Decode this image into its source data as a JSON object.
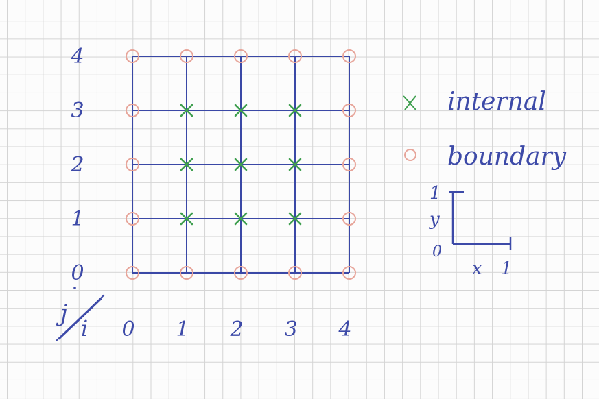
{
  "diagram": {
    "row_index_symbol": "j",
    "col_index_symbol": "i",
    "col_labels": [
      "0",
      "1",
      "2",
      "3",
      "4"
    ],
    "row_labels": [
      "0",
      "1",
      "2",
      "3",
      "4"
    ],
    "internal_points": [
      [
        1,
        1
      ],
      [
        2,
        1
      ],
      [
        3,
        1
      ],
      [
        1,
        2
      ],
      [
        2,
        2
      ],
      [
        3,
        2
      ],
      [
        1,
        3
      ],
      [
        2,
        3
      ],
      [
        3,
        3
      ]
    ],
    "boundary_points": [
      [
        0,
        0
      ],
      [
        1,
        0
      ],
      [
        2,
        0
      ],
      [
        3,
        0
      ],
      [
        4,
        0
      ],
      [
        0,
        1
      ],
      [
        4,
        1
      ],
      [
        0,
        2
      ],
      [
        4,
        2
      ],
      [
        0,
        3
      ],
      [
        4,
        3
      ],
      [
        0,
        4
      ],
      [
        1,
        4
      ],
      [
        2,
        4
      ],
      [
        3,
        4
      ],
      [
        4,
        4
      ]
    ]
  },
  "legend": {
    "internal_label": "internal",
    "boundary_label": "boundary"
  },
  "axes_inset": {
    "y_label": "y",
    "x_label": "x",
    "origin_label": "0",
    "y_max_label": "1",
    "x_max_label": "1"
  },
  "colors": {
    "grid_line": "#3a48a6",
    "internal_mark": "#3f9f4f",
    "boundary_mark": "#e7a59a",
    "ink": "#3d4aa8"
  }
}
